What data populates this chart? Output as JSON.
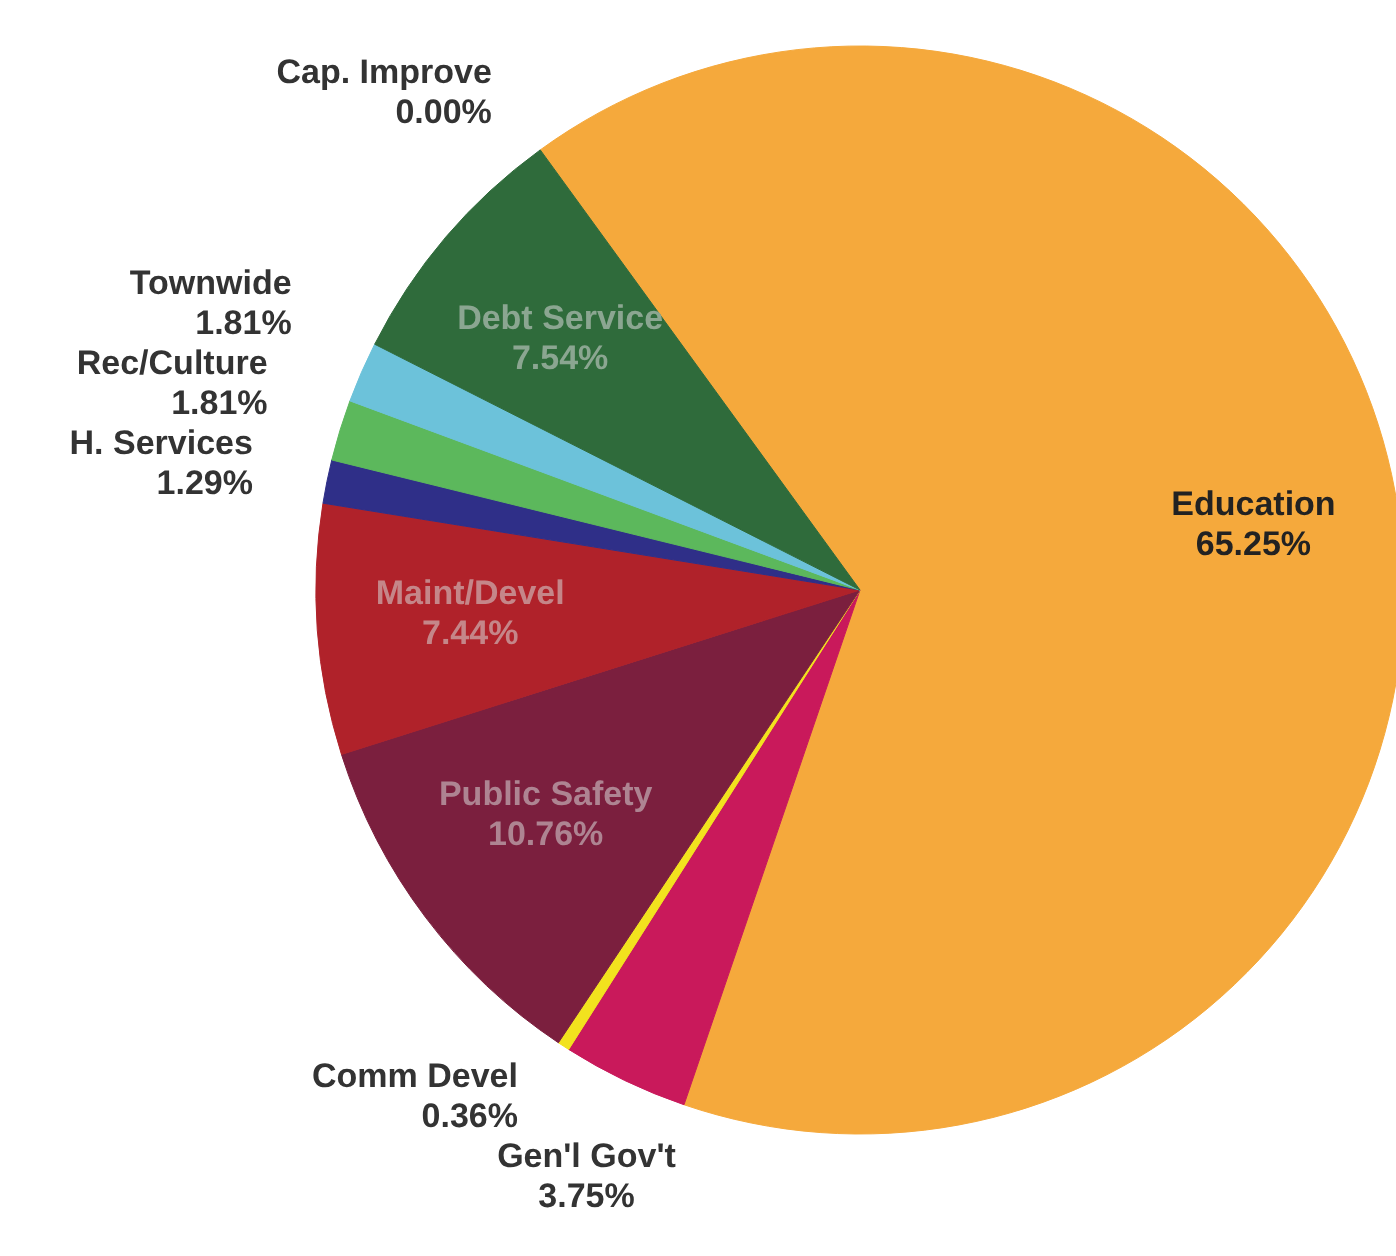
{
  "chart_data": {
    "type": "pie",
    "categories": [
      "Education",
      "Gen'l Gov't",
      "Comm Devel",
      "Public Safety",
      "Maint/Devel",
      "H. Services",
      "Rec/Culture",
      "Townwide",
      "Debt Service",
      "Cap. Improve"
    ],
    "values": [
      65.25,
      3.75,
      0.36,
      10.76,
      7.44,
      1.29,
      1.81,
      1.81,
      7.54,
      0.0
    ],
    "colors": [
      "#f5a93c",
      "#c9195b",
      "#f2e21e",
      "#7b1f3e",
      "#b0222a",
      "#2f2f88",
      "#5cb85c",
      "#6cc2da",
      "#2f6b3b",
      "#888888"
    ],
    "value_labels": [
      "65.25%",
      "3.75%",
      "0.36%",
      "10.76%",
      "7.44%",
      "1.29%",
      "1.81%",
      "1.81%",
      "7.54%",
      "0.00%"
    ]
  }
}
